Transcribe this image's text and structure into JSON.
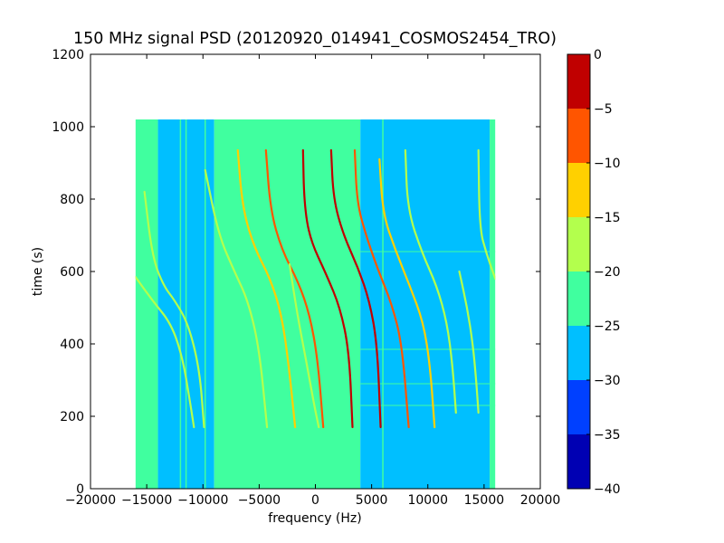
{
  "chart_data": {
    "type": "heatmap",
    "title": "150 MHz signal PSD (20120920_014941_COSMOS2454_TRO)",
    "xlabel": "frequency (Hz)",
    "ylabel": "time (s)",
    "xlim": [
      -20000,
      20000
    ],
    "ylim": [
      0,
      1200
    ],
    "x_ticks": [
      -20000,
      -15000,
      -10000,
      -5000,
      0,
      5000,
      10000,
      15000,
      20000
    ],
    "y_ticks": [
      0,
      200,
      400,
      600,
      800,
      1000,
      1200
    ],
    "data_extent": {
      "x": [
        -16000,
        16000
      ],
      "y": [
        0,
        1020
      ]
    },
    "background_regions": [
      {
        "x": [
          -16000,
          -14000
        ],
        "level": -23
      },
      {
        "x": [
          -14000,
          -9000
        ],
        "level": -27
      },
      {
        "x": [
          -9000,
          4000
        ],
        "level": -23
      },
      {
        "x": [
          4000,
          15500
        ],
        "level": -28
      },
      {
        "x": [
          15500,
          16000
        ],
        "level": -23
      }
    ],
    "vertical_lines": [
      {
        "x": -12000,
        "level": -22
      },
      {
        "x": -11500,
        "level": -22
      },
      {
        "x": -9800,
        "level": -22
      },
      {
        "x": 6000,
        "level": -22
      }
    ],
    "horizontal_lines": [
      {
        "y": 230,
        "x": [
          4000,
          16000
        ],
        "level": -22
      },
      {
        "y": 290,
        "x": [
          4000,
          16000
        ],
        "level": -22
      },
      {
        "y": 385,
        "x": [
          4000,
          16000
        ],
        "level": -22
      },
      {
        "y": 655,
        "x": [
          4000,
          16000
        ],
        "level": -22
      }
    ],
    "series": [
      {
        "points": [
          [
            -15200,
            820
          ],
          [
            -14500,
            640
          ],
          [
            -13500,
            560
          ],
          [
            -12500,
            520
          ],
          [
            -11300,
            455
          ],
          [
            -10300,
            330
          ],
          [
            -9900,
            170
          ]
        ],
        "level": -18
      },
      {
        "points": [
          [
            -16000,
            585
          ],
          [
            -14500,
            520
          ],
          [
            -12800,
            455
          ],
          [
            -11800,
            360
          ],
          [
            -11200,
            250
          ],
          [
            -10800,
            170
          ]
        ],
        "level": -18
      },
      {
        "points": [
          [
            -9800,
            880
          ],
          [
            -8600,
            700
          ],
          [
            -7200,
            600
          ],
          [
            -6000,
            520
          ],
          [
            -5000,
            390
          ],
          [
            -4300,
            170
          ]
        ],
        "level": -17
      },
      {
        "points": [
          [
            -6900,
            935
          ],
          [
            -6500,
            780
          ],
          [
            -5500,
            670
          ],
          [
            -4000,
            580
          ],
          [
            -3000,
            480
          ],
          [
            -2400,
            350
          ],
          [
            -1800,
            170
          ]
        ],
        "level": -12
      },
      {
        "points": [
          [
            -4400,
            935
          ],
          [
            -4000,
            770
          ],
          [
            -3000,
            660
          ],
          [
            -1500,
            570
          ],
          [
            -500,
            480
          ],
          [
            200,
            360
          ],
          [
            700,
            170
          ]
        ],
        "level": -8
      },
      {
        "points": [
          [
            -2300,
            620
          ],
          [
            -1600,
            480
          ],
          [
            -800,
            350
          ],
          [
            -100,
            230
          ],
          [
            300,
            170
          ]
        ],
        "level": -20
      },
      {
        "points": [
          [
            -1100,
            935
          ],
          [
            -1000,
            790
          ],
          [
            -500,
            690
          ],
          [
            1000,
            590
          ],
          [
            2200,
            500
          ],
          [
            3000,
            380
          ],
          [
            3300,
            170
          ]
        ],
        "level": -3
      },
      {
        "points": [
          [
            1400,
            935
          ],
          [
            1600,
            800
          ],
          [
            2500,
            700
          ],
          [
            3800,
            610
          ],
          [
            4800,
            520
          ],
          [
            5500,
            400
          ],
          [
            5800,
            170
          ]
        ],
        "level": -3
      },
      {
        "points": [
          [
            3500,
            935
          ],
          [
            3700,
            790
          ],
          [
            4500,
            700
          ],
          [
            5500,
            610
          ],
          [
            6800,
            510
          ],
          [
            7700,
            400
          ],
          [
            8300,
            170
          ]
        ],
        "level": -8
      },
      {
        "points": [
          [
            5700,
            910
          ],
          [
            6000,
            760
          ],
          [
            7100,
            660
          ],
          [
            8400,
            560
          ],
          [
            9600,
            460
          ],
          [
            10200,
            340
          ],
          [
            10600,
            170
          ]
        ],
        "level": -15
      },
      {
        "points": [
          [
            8000,
            935
          ],
          [
            8200,
            770
          ],
          [
            9500,
            650
          ],
          [
            10800,
            560
          ],
          [
            11700,
            460
          ],
          [
            12200,
            340
          ],
          [
            12500,
            210
          ]
        ],
        "level": -18
      },
      {
        "points": [
          [
            12800,
            600
          ],
          [
            13500,
            500
          ],
          [
            14000,
            400
          ],
          [
            14300,
            300
          ],
          [
            14500,
            210
          ]
        ],
        "level": -19
      },
      {
        "points": [
          [
            14500,
            935
          ],
          [
            14600,
            720
          ],
          [
            15200,
            650
          ],
          [
            16000,
            580
          ]
        ],
        "level": -16
      }
    ],
    "colorbar": {
      "ticks": [
        0,
        -5,
        -10,
        -15,
        -20,
        -25,
        -30,
        -35,
        -40
      ],
      "range": [
        -40,
        0
      ],
      "bands": [
        {
          "from": -40,
          "to": -35,
          "color": "#0000b3"
        },
        {
          "from": -35,
          "to": -30,
          "color": "#0040ff"
        },
        {
          "from": -30,
          "to": -25,
          "color": "#00bfff"
        },
        {
          "from": -25,
          "to": -20,
          "color": "#40ff9f"
        },
        {
          "from": -20,
          "to": -15,
          "color": "#b3ff4d"
        },
        {
          "from": -15,
          "to": -10,
          "color": "#ffd000"
        },
        {
          "from": -10,
          "to": -5,
          "color": "#ff5500"
        },
        {
          "from": -5,
          "to": 0,
          "color": "#c00000"
        }
      ]
    }
  }
}
